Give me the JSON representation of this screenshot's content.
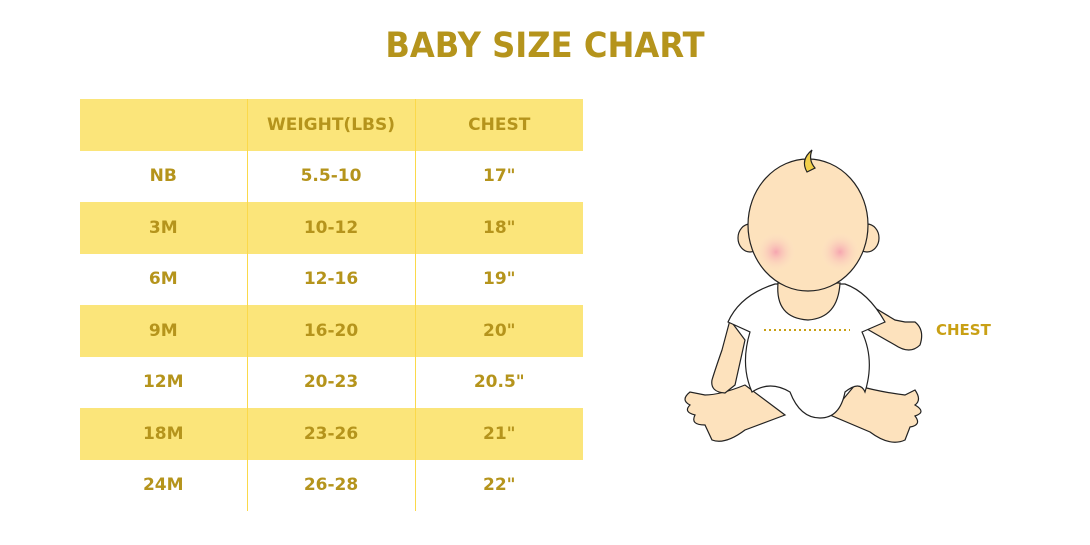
{
  "chart_data": {
    "type": "table",
    "title": "BABY SIZE CHART",
    "columns": [
      "",
      "WEIGHT(LBS)",
      "CHEST"
    ],
    "rows": [
      [
        "NB",
        "5.5-10",
        "17\""
      ],
      [
        "3M",
        "10-12",
        "18\""
      ],
      [
        "6M",
        "12-16",
        "19\""
      ],
      [
        "9M",
        "16-20",
        "20\""
      ],
      [
        "12M",
        "20-23",
        "20.5\""
      ],
      [
        "18M",
        "23-26",
        "21\""
      ],
      [
        "24M",
        "26-28",
        "22\""
      ]
    ]
  },
  "illustration": {
    "label": "CHEST",
    "icon": "baby-illustration"
  },
  "colors": {
    "accent": "#b5941c",
    "row_highlight": "#fbe57a"
  }
}
